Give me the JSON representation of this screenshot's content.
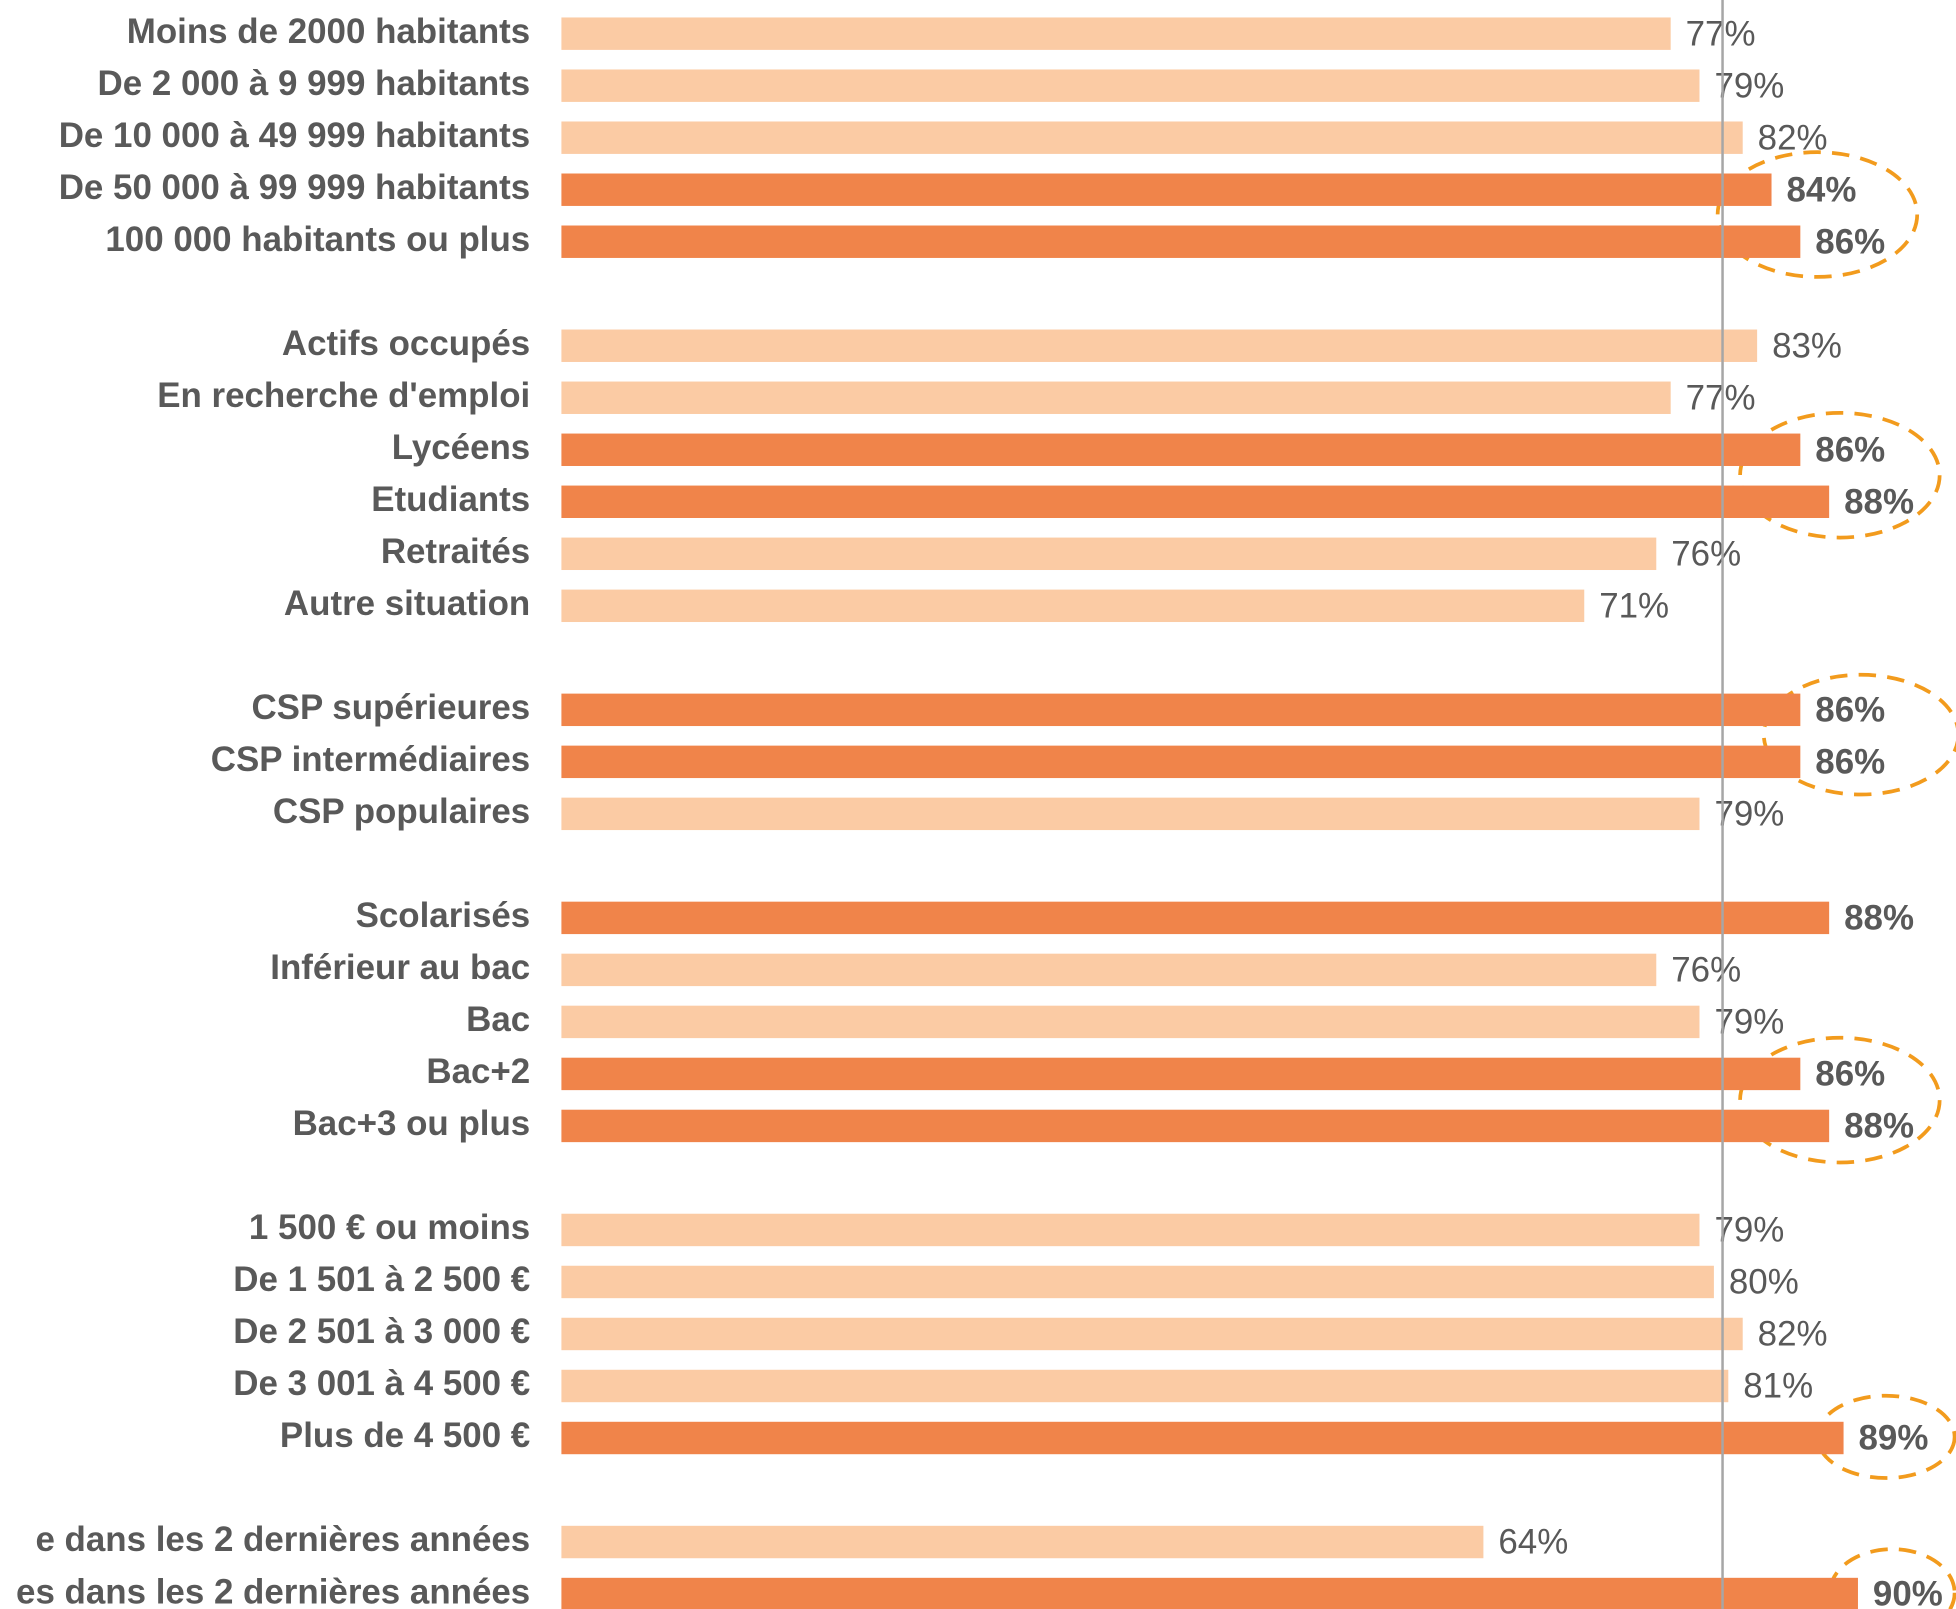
{
  "chart_data": {
    "type": "hbar",
    "categories": [
      "Moins de 2000 habitants",
      "De 2 000 à 9 999 habitants",
      "De 10 000 à 49 999 habitants",
      "De 50 000 à 99 999 habitants",
      "100 000 habitants ou plus",
      null,
      "Actifs occupés",
      "En recherche d'emploi",
      "Lycéens",
      "Etudiants",
      "Retraités",
      "Autre situation",
      null,
      "CSP supérieures",
      "CSP intermédiaires",
      "CSP populaires",
      null,
      "Scolarisés",
      "Inférieur au bac",
      "Bac",
      "Bac+2",
      "Bac+3 ou plus",
      null,
      "1 500 € ou moins",
      "De 1 501 à 2 500 €",
      "De 2 501 à 3 000 €",
      "De 3 001 à 4 500 €",
      "Plus de 4 500 €",
      null,
      "e dans les 2 dernières années",
      "es dans les 2 dernières années"
    ],
    "values": [
      77,
      79,
      82,
      84,
      86,
      null,
      83,
      77,
      86,
      88,
      76,
      71,
      null,
      86,
      86,
      79,
      null,
      88,
      76,
      79,
      86,
      88,
      null,
      79,
      80,
      82,
      81,
      89,
      null,
      64,
      90
    ],
    "value_labels": [
      "77%",
      "79%",
      "82%",
      "84%",
      "86%",
      null,
      "83%",
      "77%",
      "86%",
      "88%",
      "76%",
      "71%",
      null,
      "86%",
      "86%",
      "79%",
      null,
      "88%",
      "76%",
      "79%",
      "86%",
      "88%",
      null,
      "79%",
      "80%",
      "82%",
      "81%",
      "89%",
      null,
      "64%",
      "90%"
    ],
    "highlighted": [
      false,
      false,
      false,
      true,
      true,
      null,
      false,
      false,
      true,
      true,
      false,
      false,
      null,
      true,
      true,
      false,
      null,
      true,
      false,
      false,
      true,
      true,
      null,
      false,
      false,
      false,
      false,
      true,
      null,
      false,
      true
    ],
    "color": "#FBCBA4",
    "highlight_color": "#F0844A",
    "xlim": [
      0,
      100
    ],
    "reference_value": 80.6
  }
}
